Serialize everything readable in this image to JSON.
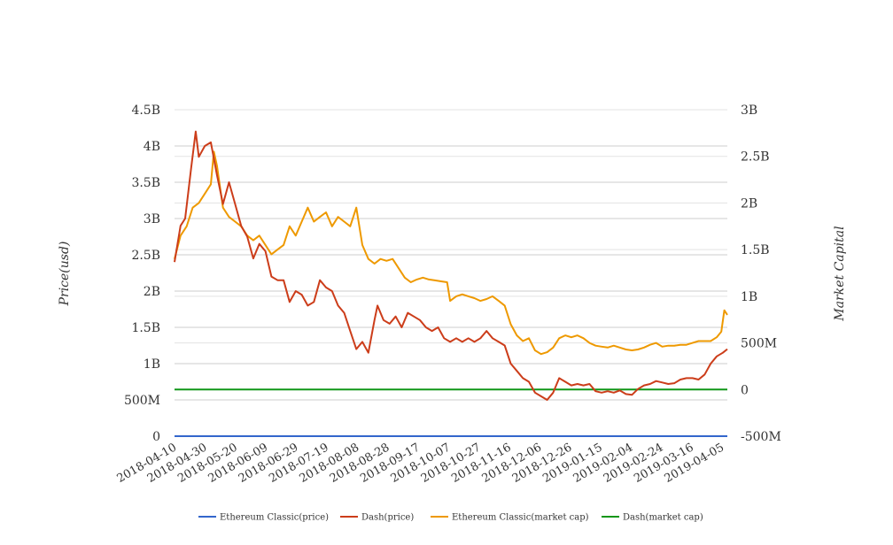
{
  "chart_data": {
    "type": "line",
    "title": "",
    "ylabel": "Price(usd)",
    "ylabel_right": "Market Capital",
    "x_ticks": [
      "2018-04-10",
      "2018-04-30",
      "2018-05-20",
      "2018-06-09",
      "2018-06-29",
      "2018-07-19",
      "2018-08-08",
      "2018-08-28",
      "2018-09-17",
      "2018-10-07",
      "2018-10-27",
      "2018-11-16",
      "2018-12-06",
      "2018-12-26",
      "2019-01-15",
      "2019-02-04",
      "2019-02-24",
      "2019-03-16",
      "2019-04-05"
    ],
    "x_range": [
      "2018-04-10",
      "2019-04-10"
    ],
    "y_left": {
      "min": 0,
      "max": 4500000000,
      "ticks": [
        0,
        500000000,
        1000000000,
        1500000000,
        2000000000,
        2500000000,
        3000000000,
        3500000000,
        4000000000,
        4500000000
      ],
      "tick_labels": [
        "0",
        "500M",
        "1B",
        "1.5B",
        "2B",
        "2.5B",
        "3B",
        "3.5B",
        "4B",
        "4.5B"
      ]
    },
    "y_right": {
      "min": -500000000,
      "max": 3000000000,
      "ticks": [
        -500000000,
        0,
        500000000,
        1000000000,
        1500000000,
        2000000000,
        2500000000,
        3000000000
      ],
      "tick_labels": [
        "-500M",
        "0",
        "500M",
        "1B",
        "1.5B",
        "2B",
        "2.5B",
        "3B"
      ]
    },
    "grid": true,
    "legend_position": "bottom",
    "series": [
      {
        "name": "Ethereum Classic(price)",
        "axis": "left",
        "color": "#3366cc",
        "points": [
          [
            "2018-04-10",
            15
          ],
          [
            "2019-04-10",
            15
          ]
        ]
      },
      {
        "name": "Dash(price)",
        "axis": "left",
        "color": "#cc3d1a",
        "points": [
          [
            "2018-04-10",
            2400000000.0
          ],
          [
            "2018-04-14",
            2900000000.0
          ],
          [
            "2018-04-17",
            3000000000.0
          ],
          [
            "2018-04-21",
            3700000000.0
          ],
          [
            "2018-04-24",
            4200000000.0
          ],
          [
            "2018-04-26",
            3850000000.0
          ],
          [
            "2018-04-30",
            4000000000.0
          ],
          [
            "2018-05-04",
            4050000000.0
          ],
          [
            "2018-05-08",
            3600000000.0
          ],
          [
            "2018-05-12",
            3200000000.0
          ],
          [
            "2018-05-16",
            3500000000.0
          ],
          [
            "2018-05-20",
            3200000000.0
          ],
          [
            "2018-05-24",
            2900000000.0
          ],
          [
            "2018-05-28",
            2750000000.0
          ],
          [
            "2018-06-01",
            2450000000.0
          ],
          [
            "2018-06-05",
            2650000000.0
          ],
          [
            "2018-06-09",
            2550000000.0
          ],
          [
            "2018-06-13",
            2200000000.0
          ],
          [
            "2018-06-17",
            2150000000.0
          ],
          [
            "2018-06-21",
            2150000000.0
          ],
          [
            "2018-06-25",
            1850000000.0
          ],
          [
            "2018-06-29",
            2000000000.0
          ],
          [
            "2018-07-03",
            1950000000.0
          ],
          [
            "2018-07-07",
            1800000000.0
          ],
          [
            "2018-07-11",
            1850000000.0
          ],
          [
            "2018-07-15",
            2150000000.0
          ],
          [
            "2018-07-19",
            2050000000.0
          ],
          [
            "2018-07-23",
            2000000000.0
          ],
          [
            "2018-07-27",
            1800000000.0
          ],
          [
            "2018-07-31",
            1700000000.0
          ],
          [
            "2018-08-04",
            1450000000.0
          ],
          [
            "2018-08-08",
            1200000000.0
          ],
          [
            "2018-08-12",
            1300000000.0
          ],
          [
            "2018-08-16",
            1150000000.0
          ],
          [
            "2018-08-20",
            1600000000.0
          ],
          [
            "2018-08-22",
            1800000000.0
          ],
          [
            "2018-08-26",
            1600000000.0
          ],
          [
            "2018-08-30",
            1550000000.0
          ],
          [
            "2018-09-03",
            1650000000.0
          ],
          [
            "2018-09-07",
            1500000000.0
          ],
          [
            "2018-09-11",
            1700000000.0
          ],
          [
            "2018-09-15",
            1650000000.0
          ],
          [
            "2018-09-19",
            1600000000.0
          ],
          [
            "2018-09-23",
            1500000000.0
          ],
          [
            "2018-09-27",
            1450000000.0
          ],
          [
            "2018-10-01",
            1500000000.0
          ],
          [
            "2018-10-05",
            1350000000.0
          ],
          [
            "2018-10-09",
            1300000000.0
          ],
          [
            "2018-10-13",
            1350000000.0
          ],
          [
            "2018-10-17",
            1300000000.0
          ],
          [
            "2018-10-21",
            1350000000.0
          ],
          [
            "2018-10-25",
            1300000000.0
          ],
          [
            "2018-10-29",
            1350000000.0
          ],
          [
            "2018-11-02",
            1450000000.0
          ],
          [
            "2018-11-06",
            1350000000.0
          ],
          [
            "2018-11-10",
            1300000000.0
          ],
          [
            "2018-11-14",
            1250000000.0
          ],
          [
            "2018-11-18",
            1000000000.0
          ],
          [
            "2018-11-22",
            900000000.0
          ],
          [
            "2018-11-26",
            800000000.0
          ],
          [
            "2018-11-30",
            750000000.0
          ],
          [
            "2018-12-04",
            600000000.0
          ],
          [
            "2018-12-08",
            550000000.0
          ],
          [
            "2018-12-12",
            500000000.0
          ],
          [
            "2018-12-16",
            600000000.0
          ],
          [
            "2018-12-20",
            800000000.0
          ],
          [
            "2018-12-24",
            750000000.0
          ],
          [
            "2018-12-28",
            700000000.0
          ],
          [
            "2019-01-01",
            720000000.0
          ],
          [
            "2019-01-05",
            700000000.0
          ],
          [
            "2019-01-09",
            720000000.0
          ],
          [
            "2019-01-13",
            620000000.0
          ],
          [
            "2019-01-17",
            600000000.0
          ],
          [
            "2019-01-21",
            620000000.0
          ],
          [
            "2019-01-25",
            600000000.0
          ],
          [
            "2019-01-29",
            630000000.0
          ],
          [
            "2019-02-02",
            580000000.0
          ],
          [
            "2019-02-06",
            570000000.0
          ],
          [
            "2019-02-10",
            650000000.0
          ],
          [
            "2019-02-14",
            700000000.0
          ],
          [
            "2019-02-18",
            720000000.0
          ],
          [
            "2019-02-22",
            760000000.0
          ],
          [
            "2019-02-26",
            740000000.0
          ],
          [
            "2019-03-02",
            720000000.0
          ],
          [
            "2019-03-06",
            730000000.0
          ],
          [
            "2019-03-10",
            780000000.0
          ],
          [
            "2019-03-14",
            800000000.0
          ],
          [
            "2019-03-18",
            800000000.0
          ],
          [
            "2019-03-22",
            780000000.0
          ],
          [
            "2019-03-26",
            850000000.0
          ],
          [
            "2019-03-30",
            1000000000.0
          ],
          [
            "2019-04-03",
            1100000000.0
          ],
          [
            "2019-04-07",
            1150000000.0
          ],
          [
            "2019-04-10",
            1200000000.0
          ]
        ]
      },
      {
        "name": "Ethereum Classic(market cap)",
        "axis": "right",
        "color": "#ee9900",
        "points": [
          [
            "2018-04-10",
            1400000000.0
          ],
          [
            "2018-04-14",
            1650000000.0
          ],
          [
            "2018-04-18",
            1750000000.0
          ],
          [
            "2018-04-22",
            1950000000.0
          ],
          [
            "2018-04-26",
            2000000000.0
          ],
          [
            "2018-04-30",
            2100000000.0
          ],
          [
            "2018-05-04",
            2200000000.0
          ],
          [
            "2018-05-06",
            2550000000.0
          ],
          [
            "2018-05-08",
            2400000000.0
          ],
          [
            "2018-05-12",
            1950000000.0
          ],
          [
            "2018-05-16",
            1850000000.0
          ],
          [
            "2018-05-20",
            1800000000.0
          ],
          [
            "2018-05-24",
            1750000000.0
          ],
          [
            "2018-05-28",
            1650000000.0
          ],
          [
            "2018-06-01",
            1600000000.0
          ],
          [
            "2018-06-05",
            1650000000.0
          ],
          [
            "2018-06-09",
            1550000000.0
          ],
          [
            "2018-06-13",
            1450000000.0
          ],
          [
            "2018-06-17",
            1500000000.0
          ],
          [
            "2018-06-21",
            1550000000.0
          ],
          [
            "2018-06-25",
            1750000000.0
          ],
          [
            "2018-06-29",
            1650000000.0
          ],
          [
            "2018-07-03",
            1800000000.0
          ],
          [
            "2018-07-07",
            1950000000.0
          ],
          [
            "2018-07-11",
            1800000000.0
          ],
          [
            "2018-07-15",
            1850000000.0
          ],
          [
            "2018-07-19",
            1900000000.0
          ],
          [
            "2018-07-23",
            1750000000.0
          ],
          [
            "2018-07-27",
            1850000000.0
          ],
          [
            "2018-07-31",
            1800000000.0
          ],
          [
            "2018-08-04",
            1750000000.0
          ],
          [
            "2018-08-08",
            1950000000.0
          ],
          [
            "2018-08-12",
            1550000000.0
          ],
          [
            "2018-08-16",
            1400000000.0
          ],
          [
            "2018-08-20",
            1350000000.0
          ],
          [
            "2018-08-24",
            1400000000.0
          ],
          [
            "2018-08-28",
            1380000000.0
          ],
          [
            "2018-09-01",
            1400000000.0
          ],
          [
            "2018-09-05",
            1300000000.0
          ],
          [
            "2018-09-09",
            1200000000.0
          ],
          [
            "2018-09-13",
            1150000000.0
          ],
          [
            "2018-09-17",
            1180000000.0
          ],
          [
            "2018-09-21",
            1200000000.0
          ],
          [
            "2018-09-25",
            1180000000.0
          ],
          [
            "2018-09-29",
            1170000000.0
          ],
          [
            "2018-10-03",
            1160000000.0
          ],
          [
            "2018-10-07",
            1150000000.0
          ],
          [
            "2018-10-09",
            950000000.0
          ],
          [
            "2018-10-13",
            1000000000.0
          ],
          [
            "2018-10-17",
            1020000000.0
          ],
          [
            "2018-10-21",
            1000000000.0
          ],
          [
            "2018-10-25",
            980000000.0
          ],
          [
            "2018-10-29",
            950000000.0
          ],
          [
            "2018-11-02",
            970000000.0
          ],
          [
            "2018-11-06",
            1000000000.0
          ],
          [
            "2018-11-10",
            950000000.0
          ],
          [
            "2018-11-14",
            900000000.0
          ],
          [
            "2018-11-18",
            700000000.0
          ],
          [
            "2018-11-22",
            580000000.0
          ],
          [
            "2018-11-26",
            520000000.0
          ],
          [
            "2018-11-30",
            550000000.0
          ],
          [
            "2018-12-04",
            420000000.0
          ],
          [
            "2018-12-08",
            380000000.0
          ],
          [
            "2018-12-12",
            400000000.0
          ],
          [
            "2018-12-16",
            450000000.0
          ],
          [
            "2018-12-20",
            550000000.0
          ],
          [
            "2018-12-24",
            580000000.0
          ],
          [
            "2018-12-28",
            560000000.0
          ],
          [
            "2019-01-01",
            580000000.0
          ],
          [
            "2019-01-05",
            550000000.0
          ],
          [
            "2019-01-09",
            500000000.0
          ],
          [
            "2019-01-13",
            470000000.0
          ],
          [
            "2019-01-17",
            460000000.0
          ],
          [
            "2019-01-21",
            450000000.0
          ],
          [
            "2019-01-25",
            470000000.0
          ],
          [
            "2019-01-29",
            450000000.0
          ],
          [
            "2019-02-02",
            430000000.0
          ],
          [
            "2019-02-06",
            420000000.0
          ],
          [
            "2019-02-10",
            430000000.0
          ],
          [
            "2019-02-14",
            450000000.0
          ],
          [
            "2019-02-18",
            480000000.0
          ],
          [
            "2019-02-22",
            500000000.0
          ],
          [
            "2019-02-26",
            460000000.0
          ],
          [
            "2019-03-02",
            470000000.0
          ],
          [
            "2019-03-06",
            470000000.0
          ],
          [
            "2019-03-10",
            480000000.0
          ],
          [
            "2019-03-14",
            480000000.0
          ],
          [
            "2019-03-18",
            500000000.0
          ],
          [
            "2019-03-22",
            520000000.0
          ],
          [
            "2019-03-26",
            520000000.0
          ],
          [
            "2019-03-30",
            520000000.0
          ],
          [
            "2019-04-03",
            560000000.0
          ],
          [
            "2019-04-06",
            620000000.0
          ],
          [
            "2019-04-08",
            850000000.0
          ],
          [
            "2019-04-10",
            800000000.0
          ]
        ]
      },
      {
        "name": "Dash(market cap)",
        "axis": "right",
        "color": "#109618",
        "points": [
          [
            "2018-04-10",
            0
          ],
          [
            "2019-04-10",
            0
          ]
        ]
      }
    ]
  }
}
